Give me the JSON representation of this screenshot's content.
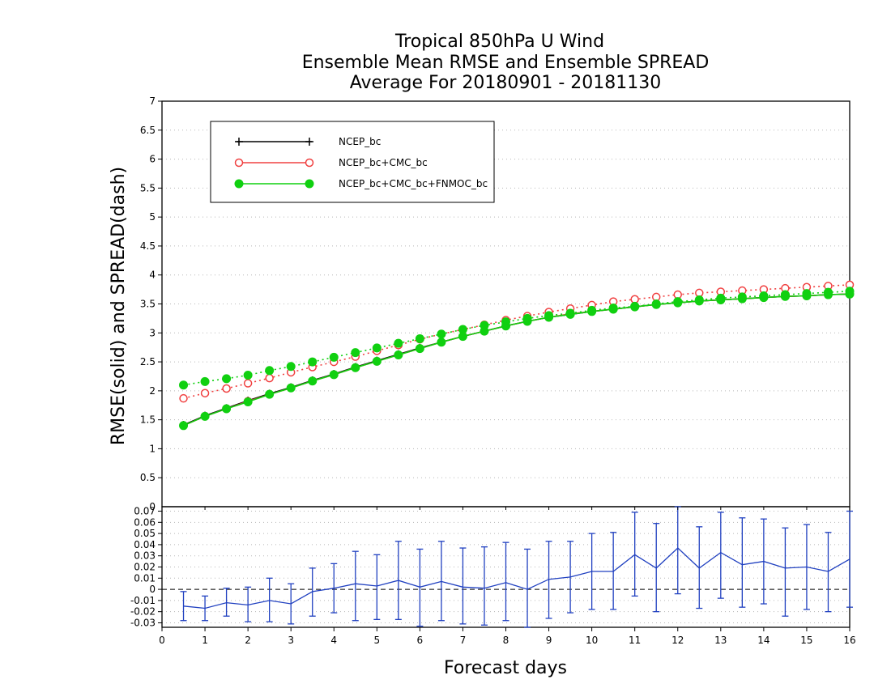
{
  "chart_data": [
    {
      "type": "line",
      "title": [
        "Tropical 850hPa U Wind",
        "Ensemble Mean RMSE and Ensemble SPREAD",
        "Average For 20180901 - 20181130"
      ],
      "xlabel": "",
      "ylabel": "RMSE(solid) and SPREAD(dash)",
      "xlim": [
        0,
        16
      ],
      "ylim": [
        0,
        7
      ],
      "yticks": [
        "0.5",
        "1",
        "1.5",
        "2",
        "2.5",
        "3",
        "3.5",
        "4",
        "4.5",
        "5",
        "5.5",
        "6",
        "6.5",
        "7"
      ],
      "grid": true,
      "legend_position": "top-left",
      "x": [
        0.5,
        1,
        1.5,
        2,
        2.5,
        3,
        3.5,
        4,
        4.5,
        5,
        5.5,
        6,
        6.5,
        7,
        7.5,
        8,
        8.5,
        9,
        9.5,
        10,
        10.5,
        11,
        11.5,
        12,
        12.5,
        13,
        13.5,
        14,
        14.5,
        15,
        15.5,
        16
      ],
      "series": [
        {
          "name": "NCEP_bc",
          "color": "#000000",
          "marker": "plus",
          "rmse": [
            1.41,
            1.57,
            1.7,
            1.83,
            1.95,
            2.06,
            2.18,
            2.29,
            2.41,
            2.52,
            2.63,
            2.74,
            2.84,
            2.94,
            3.03,
            3.12,
            3.2,
            3.27,
            3.32,
            3.37,
            3.41,
            3.45,
            3.49,
            3.52,
            3.55,
            3.57,
            3.59,
            3.61,
            3.63,
            3.64,
            3.66,
            3.67
          ],
          "spread": []
        },
        {
          "name": "NCEP_bc+CMC_bc",
          "color": "#f04040",
          "marker": "open-circle",
          "rmse": [
            1.4,
            1.56,
            1.69,
            1.82,
            1.94,
            2.05,
            2.17,
            2.28,
            2.4,
            2.51,
            2.62,
            2.73,
            2.84,
            2.94,
            3.03,
            3.12,
            3.2,
            3.27,
            3.33,
            3.37,
            3.41,
            3.45,
            3.49,
            3.52,
            3.55,
            3.57,
            3.59,
            3.61,
            3.63,
            3.64,
            3.66,
            3.67
          ],
          "spread": [
            1.87,
            1.96,
            2.04,
            2.13,
            2.22,
            2.32,
            2.41,
            2.5,
            2.59,
            2.69,
            2.79,
            2.89,
            2.98,
            3.06,
            3.14,
            3.22,
            3.29,
            3.36,
            3.42,
            3.48,
            3.54,
            3.58,
            3.62,
            3.66,
            3.69,
            3.71,
            3.73,
            3.75,
            3.77,
            3.79,
            3.81,
            3.83
          ]
        },
        {
          "name": "NCEP_bc+CMC_bc+FNMOC_bc",
          "color": "#10d010",
          "marker": "filled-circle",
          "rmse": [
            1.4,
            1.56,
            1.69,
            1.81,
            1.94,
            2.05,
            2.17,
            2.28,
            2.4,
            2.51,
            2.62,
            2.73,
            2.84,
            2.94,
            3.03,
            3.12,
            3.2,
            3.27,
            3.32,
            3.37,
            3.41,
            3.45,
            3.49,
            3.52,
            3.55,
            3.57,
            3.59,
            3.61,
            3.63,
            3.64,
            3.66,
            3.67
          ],
          "spread": [
            2.1,
            2.16,
            2.21,
            2.27,
            2.35,
            2.42,
            2.5,
            2.58,
            2.66,
            2.74,
            2.82,
            2.9,
            2.98,
            3.06,
            3.13,
            3.19,
            3.25,
            3.3,
            3.34,
            3.39,
            3.43,
            3.46,
            3.5,
            3.54,
            3.57,
            3.6,
            3.62,
            3.64,
            3.66,
            3.68,
            3.7,
            3.72
          ]
        }
      ]
    },
    {
      "type": "line",
      "xlabel": "Forecast days",
      "xlim": [
        0,
        16
      ],
      "xticks": [
        "0",
        "1",
        "2",
        "3",
        "4",
        "5",
        "6",
        "7",
        "8",
        "9",
        "10",
        "11",
        "12",
        "13",
        "14",
        "15",
        "16"
      ],
      "ylim": [
        -0.034,
        0.074
      ],
      "yticks": [
        "-0.03",
        "-0.02",
        "-0.01",
        "0",
        "0.01",
        "0.02",
        "0.03",
        "0.04",
        "0.05",
        "0.06",
        "0.07"
      ],
      "grid": true,
      "color": "#2040c0",
      "x": [
        0.5,
        1,
        1.5,
        2,
        2.5,
        3,
        3.5,
        4,
        4.5,
        5,
        5.5,
        6,
        6.5,
        7,
        7.5,
        8,
        8.5,
        9,
        9.5,
        10,
        10.5,
        11,
        11.5,
        12,
        12.5,
        13,
        13.5,
        14,
        14.5,
        15,
        15.5,
        16
      ],
      "values": [
        -0.015,
        -0.017,
        -0.012,
        -0.014,
        -0.01,
        -0.013,
        -0.002,
        0.001,
        0.005,
        0.003,
        0.008,
        0.002,
        0.007,
        0.002,
        0.001,
        0.006,
        0.0,
        0.009,
        0.011,
        0.016,
        0.016,
        0.031,
        0.019,
        0.037,
        0.019,
        0.033,
        0.022,
        0.025,
        0.019,
        0.02,
        0.016,
        0.027
      ],
      "error_low": [
        -0.028,
        -0.028,
        -0.024,
        -0.029,
        -0.029,
        -0.031,
        -0.024,
        -0.021,
        -0.028,
        -0.027,
        -0.027,
        -0.033,
        -0.028,
        -0.031,
        -0.032,
        -0.028,
        -0.034,
        -0.026,
        -0.021,
        -0.018,
        -0.018,
        -0.006,
        -0.02,
        -0.004,
        -0.017,
        -0.008,
        -0.016,
        -0.013,
        -0.024,
        -0.018,
        -0.02,
        -0.016
      ],
      "error_high": [
        -0.002,
        -0.006,
        0.001,
        0.002,
        0.01,
        0.005,
        0.019,
        0.023,
        0.034,
        0.031,
        0.043,
        0.036,
        0.043,
        0.037,
        0.038,
        0.042,
        0.036,
        0.043,
        0.043,
        0.05,
        0.051,
        0.069,
        0.059,
        0.074,
        0.056,
        0.069,
        0.064,
        0.063,
        0.055,
        0.058,
        0.051,
        0.07
      ]
    }
  ]
}
